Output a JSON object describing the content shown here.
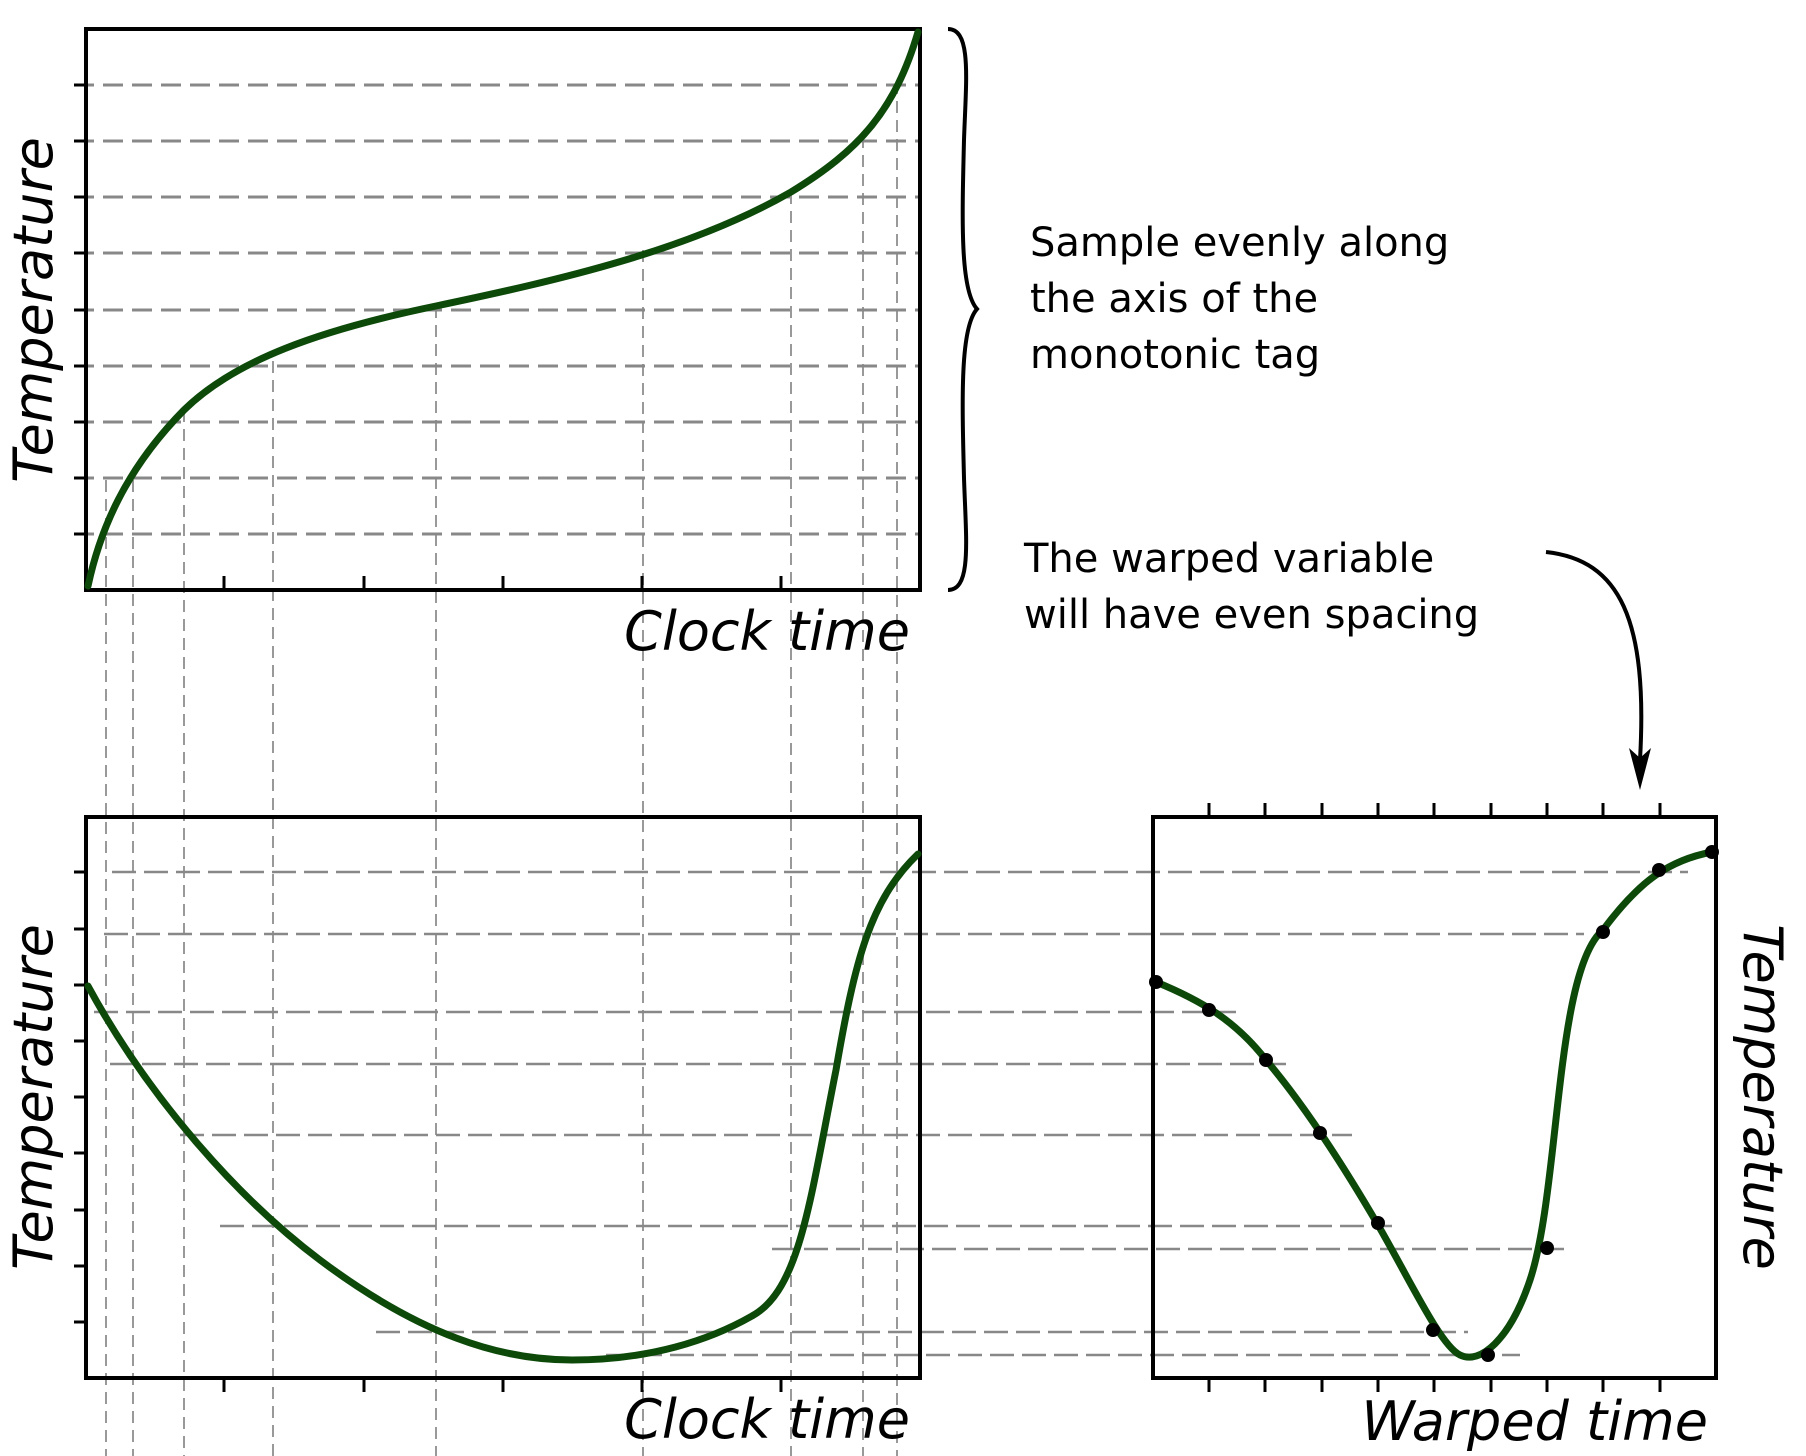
{
  "top_panel": {
    "xlabel": "Clock time",
    "ylabel": "Temperature"
  },
  "bottom_left_panel": {
    "xlabel": "Clock time",
    "ylabel": "Temperature"
  },
  "bottom_right_panel": {
    "xlabel": "Warped time",
    "ylabel": "Temperature"
  },
  "annotations": {
    "sample_note": [
      "Sample evenly along",
      "the axis of the",
      "monotonic tag"
    ],
    "warp_note": [
      "The warped variable",
      "will have even spacing"
    ]
  },
  "colors": {
    "curve": "#0d4a0a",
    "grid": "#888888",
    "frame": "#000000"
  }
}
